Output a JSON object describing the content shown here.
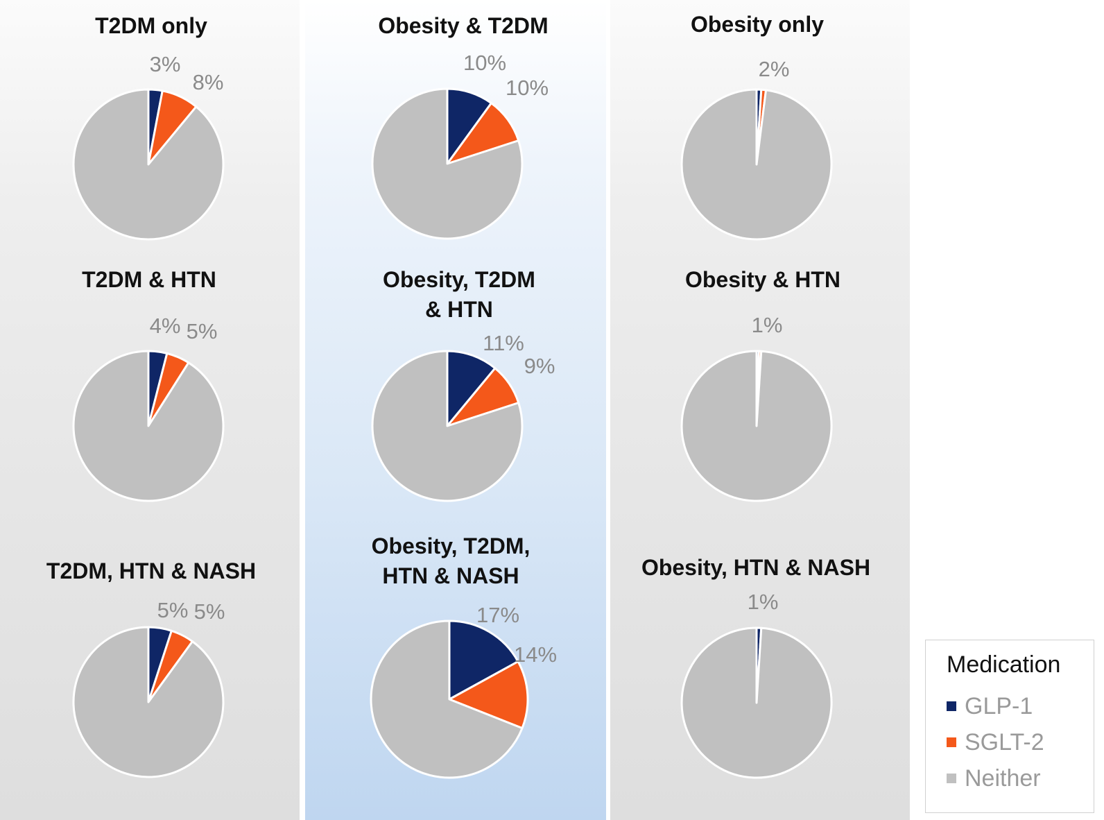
{
  "chart_data": {
    "type": "pie",
    "legend_title": "Medication",
    "legend_position": "bottom-right",
    "categories": [
      "GLP-1",
      "SGLT-2",
      "Neither"
    ],
    "colors": {
      "GLP-1": "#0f2666",
      "SGLT-2": "#f4581a",
      "Neither": "#c0c0c0"
    },
    "charts": [
      {
        "title": [
          "T2DM only"
        ],
        "glp1": 3,
        "sglt2": 8,
        "labels": [
          "3%",
          "8%"
        ]
      },
      {
        "title": [
          "Obesity & T2DM"
        ],
        "glp1": 10,
        "sglt2": 10,
        "labels": [
          "10%",
          "10%"
        ]
      },
      {
        "title": [
          "Obesity only"
        ],
        "glp1": 1,
        "sglt2": 1,
        "labels": [
          "2%"
        ]
      },
      {
        "title": [
          "T2DM & HTN"
        ],
        "glp1": 4,
        "sglt2": 5,
        "labels": [
          "4%",
          "5%"
        ]
      },
      {
        "title": [
          "Obesity, T2DM",
          "& HTN"
        ],
        "glp1": 11,
        "sglt2": 9,
        "labels": [
          "11%",
          "9%"
        ]
      },
      {
        "title": [
          "Obesity & HTN"
        ],
        "glp1": 0.5,
        "sglt2": 0.5,
        "labels": [
          "1%"
        ]
      },
      {
        "title": [
          "T2DM, HTN & NASH"
        ],
        "glp1": 5,
        "sglt2": 5,
        "labels": [
          "5%",
          "5%"
        ]
      },
      {
        "title": [
          "Obesity, T2DM,",
          "HTN & NASH"
        ],
        "glp1": 17,
        "sglt2": 14,
        "labels": [
          "17%",
          "14%"
        ]
      },
      {
        "title": [
          "Obesity, HTN & NASH"
        ],
        "glp1": 1,
        "sglt2": 0,
        "labels": [
          "1%"
        ]
      }
    ]
  }
}
